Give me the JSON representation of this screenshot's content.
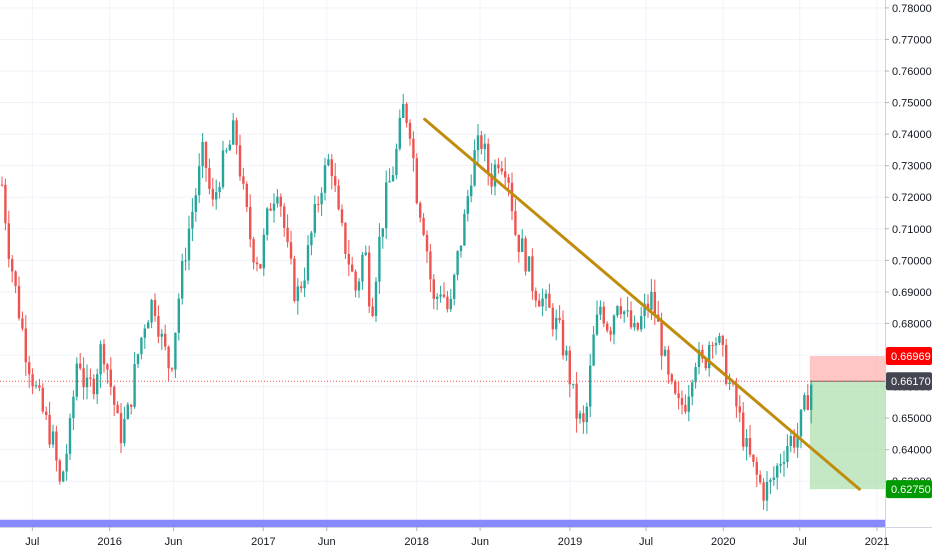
{
  "chart_data": {
    "type": "candlestick",
    "title": "",
    "xlabel": "",
    "ylabel": "",
    "x_tick_labels": [
      "Jul",
      "2016",
      "Jun",
      "2017",
      "Jun",
      "2018",
      "Jun",
      "2019",
      "Jul",
      "2020",
      "Jul",
      "2021"
    ],
    "x_tick_dates": [
      "2015-07-01",
      "2016-01-01",
      "2016-06-01",
      "2017-01-01",
      "2017-06-01",
      "2018-01-01",
      "2018-06-01",
      "2019-01-01",
      "2019-07-01",
      "2020-01-01",
      "2020-07-01",
      "2021-01-01"
    ],
    "x_range": [
      "2015-04-15",
      "2021-01-20"
    ],
    "ylim": [
      0.6155,
      0.7825
    ],
    "y_ticks": [
      0.63,
      0.64,
      0.65,
      0.66,
      0.67,
      0.68,
      0.69,
      0.7,
      0.71,
      0.72,
      0.73,
      0.74,
      0.75,
      0.76,
      0.77,
      0.78
    ],
    "y_tick_labels": [
      "0.63000",
      "0.64000",
      "0.65000",
      "0.66000",
      "0.67000",
      "0.68000",
      "0.69000",
      "0.70000",
      "0.71000",
      "0.72000",
      "0.73000",
      "0.74000",
      "0.75000",
      "0.76000",
      "0.77000",
      "0.78000"
    ],
    "grid": true,
    "colors": {
      "up": "#26a69a",
      "down": "#ef5350",
      "trendline": "#c08c0c",
      "support_zone": "#7b7bff",
      "profit_zone": "#a5dca5",
      "loss_zone": "#ffb3b3",
      "current_price_tag": "#434651",
      "stop_tag": "#ff0000",
      "target_tag": "#009900",
      "axis_text": "#131722",
      "grid": "#f0f3fa"
    },
    "price_path": [
      [
        "2015-04-20",
        0.724
      ],
      [
        "2015-05-05",
        0.705
      ],
      [
        "2015-05-25",
        0.688
      ],
      [
        "2015-06-15",
        0.672
      ],
      [
        "2015-07-05",
        0.661
      ],
      [
        "2015-07-25",
        0.652
      ],
      [
        "2015-08-20",
        0.642
      ],
      [
        "2015-09-05",
        0.628
      ],
      [
        "2015-09-28",
        0.645
      ],
      [
        "2015-10-18",
        0.672
      ],
      [
        "2015-11-05",
        0.658
      ],
      [
        "2015-11-25",
        0.662
      ],
      [
        "2015-12-15",
        0.674
      ],
      [
        "2016-01-10",
        0.656
      ],
      [
        "2016-01-25",
        0.644
      ],
      [
        "2016-02-15",
        0.652
      ],
      [
        "2016-03-05",
        0.668
      ],
      [
        "2016-03-25",
        0.681
      ],
      [
        "2016-04-15",
        0.688
      ],
      [
        "2016-05-05",
        0.674
      ],
      [
        "2016-05-25",
        0.665
      ],
      [
        "2016-06-15",
        0.69
      ],
      [
        "2016-07-05",
        0.708
      ],
      [
        "2016-07-25",
        0.722
      ],
      [
        "2016-08-12",
        0.735
      ],
      [
        "2016-09-01",
        0.716
      ],
      [
        "2016-09-20",
        0.728
      ],
      [
        "2016-10-10",
        0.735
      ],
      [
        "2016-10-25",
        0.742
      ],
      [
        "2016-11-15",
        0.72
      ],
      [
        "2016-12-05",
        0.704
      ],
      [
        "2016-12-25",
        0.699
      ],
      [
        "2017-01-15",
        0.717
      ],
      [
        "2017-02-05",
        0.725
      ],
      [
        "2017-02-28",
        0.702
      ],
      [
        "2017-03-20",
        0.688
      ],
      [
        "2017-04-10",
        0.697
      ],
      [
        "2017-05-01",
        0.712
      ],
      [
        "2017-05-20",
        0.725
      ],
      [
        "2017-06-10",
        0.733
      ],
      [
        "2017-06-30",
        0.712
      ],
      [
        "2017-07-20",
        0.702
      ],
      [
        "2017-08-10",
        0.69
      ],
      [
        "2017-08-30",
        0.705
      ],
      [
        "2017-09-15",
        0.683
      ],
      [
        "2017-10-01",
        0.703
      ],
      [
        "2017-10-20",
        0.72
      ],
      [
        "2017-11-10",
        0.731
      ],
      [
        "2017-11-30",
        0.748
      ],
      [
        "2017-12-15",
        0.744
      ],
      [
        "2018-01-01",
        0.722
      ],
      [
        "2018-01-20",
        0.71
      ],
      [
        "2018-02-10",
        0.686
      ],
      [
        "2018-03-01",
        0.692
      ],
      [
        "2018-03-20",
        0.682
      ],
      [
        "2018-04-05",
        0.698
      ],
      [
        "2018-04-25",
        0.713
      ],
      [
        "2018-05-15",
        0.732
      ],
      [
        "2018-06-05",
        0.738
      ],
      [
        "2018-06-25",
        0.725
      ],
      [
        "2018-07-15",
        0.733
      ],
      [
        "2018-08-05",
        0.73
      ],
      [
        "2018-08-25",
        0.708
      ],
      [
        "2018-09-15",
        0.702
      ],
      [
        "2018-10-05",
        0.692
      ],
      [
        "2018-10-25",
        0.688
      ],
      [
        "2018-11-15",
        0.683
      ],
      [
        "2018-12-05",
        0.678
      ],
      [
        "2018-12-25",
        0.668
      ],
      [
        "2019-01-15",
        0.652
      ],
      [
        "2019-02-05",
        0.646
      ],
      [
        "2019-02-25",
        0.674
      ],
      [
        "2019-03-15",
        0.686
      ],
      [
        "2019-04-05",
        0.678
      ],
      [
        "2019-04-25",
        0.689
      ],
      [
        "2019-05-15",
        0.682
      ],
      [
        "2019-06-05",
        0.676
      ],
      [
        "2019-06-25",
        0.683
      ],
      [
        "2019-07-15",
        0.688
      ],
      [
        "2019-08-05",
        0.675
      ],
      [
        "2019-08-25",
        0.66
      ],
      [
        "2019-09-15",
        0.653
      ],
      [
        "2019-10-05",
        0.656
      ],
      [
        "2019-10-25",
        0.67
      ],
      [
        "2019-11-15",
        0.666
      ],
      [
        "2019-12-05",
        0.678
      ],
      [
        "2019-12-25",
        0.672
      ],
      [
        "2020-01-15",
        0.661
      ],
      [
        "2020-02-05",
        0.652
      ],
      [
        "2020-02-25",
        0.64
      ],
      [
        "2020-03-15",
        0.633
      ],
      [
        "2020-04-05",
        0.627
      ],
      [
        "2020-04-25",
        0.629
      ],
      [
        "2020-05-15",
        0.637
      ],
      [
        "2020-06-05",
        0.643
      ],
      [
        "2020-06-25",
        0.644
      ],
      [
        "2020-07-10",
        0.652
      ],
      [
        "2020-07-30",
        0.6617
      ]
    ],
    "trendline": {
      "start": [
        "2018-01-20",
        0.7447
      ],
      "end": [
        "2020-11-20",
        0.6275
      ]
    },
    "support_zone": {
      "y_low": 0.6152,
      "y_high": 0.6178
    },
    "position": {
      "start": "2020-07-25",
      "end": "2021-01-20",
      "entry": 0.6617,
      "stop": 0.66969,
      "target": 0.6275
    },
    "current_price": 0.6617,
    "price_tags": [
      {
        "name": "stop",
        "label": "0.66969",
        "value": 0.66969
      },
      {
        "name": "current",
        "label": "0.66170",
        "value": 0.6617
      },
      {
        "name": "target",
        "label": "0.62750",
        "value": 0.6275
      }
    ]
  }
}
